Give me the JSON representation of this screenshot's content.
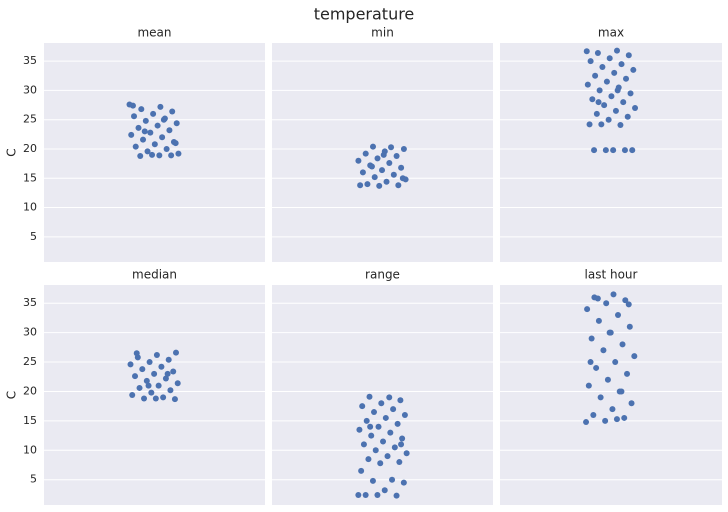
{
  "title": "temperature",
  "chart_data": [
    {
      "type": "strip",
      "title": "mean",
      "ylabel": "C",
      "color": "#4c72b0",
      "grid": true,
      "ylim": [
        0.7,
        38.1
      ],
      "yticks": [
        5,
        10,
        15,
        20,
        25,
        30,
        35
      ],
      "values": [
        27.6,
        27.2,
        26.8,
        26.4,
        26,
        25.6,
        25.2,
        24.8,
        24.4,
        24,
        23.6,
        23.2,
        22.8,
        22.4,
        22,
        21.6,
        21.2,
        20.8,
        20.4,
        20,
        19.6,
        19.2,
        18.9,
        18.8,
        18.9,
        19,
        27.4,
        25,
        23,
        21
      ]
    },
    {
      "type": "strip",
      "title": "min",
      "color": "#4c72b0",
      "grid": true,
      "ylim": [
        0.7,
        38.1
      ],
      "yticks": [
        5,
        10,
        15,
        20,
        25,
        30,
        35
      ],
      "values": [
        20.4,
        20,
        19.6,
        19.2,
        18.8,
        18.4,
        18,
        17.6,
        17.2,
        16.8,
        16.4,
        16,
        15.6,
        15.2,
        14.8,
        14.4,
        14,
        13.8,
        13.7,
        13.8,
        20.3,
        17,
        15,
        19
      ]
    },
    {
      "type": "strip",
      "title": "max",
      "color": "#4c72b0",
      "grid": true,
      "ylim": [
        0.7,
        38.1
      ],
      "yticks": [
        5,
        10,
        15,
        20,
        25,
        30,
        35
      ],
      "values": [
        36.8,
        36.4,
        36,
        35.5,
        35,
        34.5,
        34,
        33.5,
        33,
        32.5,
        32,
        31.5,
        31,
        30.5,
        30,
        29.5,
        29,
        28.5,
        28,
        27.5,
        27,
        26.5,
        26,
        25.5,
        25,
        24.2,
        24.1,
        24.2,
        19.8,
        19.8,
        19.8,
        19.8,
        19.8,
        36.7,
        30,
        28
      ]
    },
    {
      "type": "strip",
      "title": "median",
      "ylabel": "C",
      "color": "#4c72b0",
      "grid": true,
      "ylim": [
        0.7,
        38.1
      ],
      "yticks": [
        5,
        10,
        15,
        20,
        25,
        30,
        35
      ],
      "values": [
        26.6,
        26.2,
        25.8,
        25.4,
        25,
        24.6,
        24.2,
        23.8,
        23.4,
        23,
        22.6,
        22.2,
        21.8,
        21.4,
        21,
        20.6,
        20.2,
        19.8,
        19.4,
        19,
        18.8,
        18.7,
        18.8,
        26.5,
        23,
        21
      ]
    },
    {
      "type": "strip",
      "title": "range",
      "color": "#4c72b0",
      "grid": true,
      "ylim": [
        0.7,
        38.1
      ],
      "yticks": [
        5,
        10,
        15,
        20,
        25,
        30,
        35
      ],
      "values": [
        19.1,
        18.5,
        18,
        17.5,
        17,
        16.5,
        16,
        15.5,
        15,
        14.5,
        14,
        13.5,
        13,
        12.5,
        12,
        11.5,
        11,
        10.5,
        10,
        9.5,
        9,
        8.5,
        8,
        7.8,
        6.5,
        5,
        4.8,
        4.5,
        3.2,
        2.4,
        2.3,
        2.4,
        2.4,
        19,
        14,
        11
      ]
    },
    {
      "type": "strip",
      "title": "last hour",
      "color": "#4c72b0",
      "grid": true,
      "ylim": [
        0.7,
        38.1
      ],
      "yticks": [
        5,
        10,
        15,
        20,
        25,
        30,
        35
      ],
      "values": [
        36.5,
        36,
        35.5,
        35,
        34,
        33,
        32,
        31,
        30,
        29,
        28,
        27,
        26,
        25,
        24,
        23,
        22,
        21,
        20,
        19,
        18,
        17,
        16,
        15.5,
        15,
        14.8,
        15.3,
        35.8,
        34.8,
        30,
        25,
        20
      ]
    }
  ]
}
